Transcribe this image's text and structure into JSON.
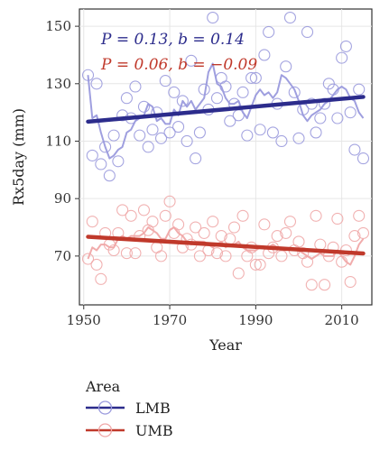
{
  "chart_data": {
    "type": "scatter",
    "xlabel": "Year",
    "ylabel": "Rx5day (mm)",
    "xlim": [
      1949,
      2017
    ],
    "ylim": [
      53,
      156
    ],
    "x_ticks": [
      "1950",
      "1970",
      "1990",
      "2010"
    ],
    "y_ticks": [
      "70",
      "90",
      "110",
      "130",
      "150"
    ],
    "grid": true,
    "legend": {
      "title": "Area",
      "placement": "bottom-left"
    },
    "annotations": [
      {
        "text": "P = 0.13, b = 0.14",
        "series": "LMB"
      },
      {
        "text": "P = 0.06, b = −0.09",
        "series": "UMB"
      }
    ],
    "series": [
      {
        "name": "LMB",
        "color": "#2c2c8c",
        "points_color": "#9a9add",
        "years": [
          1951,
          1952,
          1953,
          1954,
          1955,
          1956,
          1957,
          1958,
          1959,
          1960,
          1961,
          1962,
          1963,
          1964,
          1965,
          1966,
          1967,
          1968,
          1969,
          1970,
          1971,
          1972,
          1973,
          1974,
          1975,
          1976,
          1977,
          1978,
          1979,
          1980,
          1981,
          1982,
          1983,
          1984,
          1985,
          1986,
          1987,
          1988,
          1989,
          1990,
          1991,
          1992,
          1993,
          1994,
          1995,
          1996,
          1997,
          1998,
          1999,
          2000,
          2001,
          2002,
          2003,
          2004,
          2005,
          2006,
          2007,
          2008,
          2009,
          2010,
          2011,
          2012,
          2013,
          2014,
          2015
        ],
        "values": [
          133,
          105,
          130,
          102,
          108,
          98,
          112,
          103,
          119,
          125,
          118,
          129,
          112,
          122,
          108,
          114,
          120,
          111,
          131,
          113,
          127,
          115,
          124,
          110,
          138,
          104,
          113,
          128,
          121,
          153,
          125,
          132,
          129,
          117,
          123,
          119,
          127,
          112,
          132,
          132,
          114,
          140,
          148,
          113,
          123,
          110,
          136,
          153,
          127,
          111,
          121,
          148,
          123,
          113,
          118,
          123,
          130,
          128,
          118,
          139,
          143,
          120,
          107,
          128,
          104
        ],
        "running_mean": [
          133,
          118,
          119,
          113,
          108,
          104,
          105,
          107,
          108,
          113,
          114,
          117,
          118,
          119,
          123,
          122,
          117,
          118,
          116,
          116,
          121,
          119,
          124,
          122,
          124,
          121,
          123,
          125,
          134,
          137,
          130,
          129,
          125,
          123,
          123,
          124,
          120,
          118,
          122,
          126,
          128,
          126,
          127,
          125,
          127,
          133,
          132,
          130,
          128,
          124,
          119,
          117,
          119,
          120,
          121,
          123,
          124,
          126,
          128,
          129,
          128,
          125,
          124,
          120,
          118
        ],
        "trend": {
          "start": [
            1951,
            116.8
          ],
          "end": [
            2015,
            125.4
          ]
        }
      },
      {
        "name": "UMB",
        "color": "#c0392b",
        "points_color": "#f0a8a8",
        "years": [
          1951,
          1952,
          1953,
          1954,
          1955,
          1956,
          1957,
          1958,
          1959,
          1960,
          1961,
          1962,
          1963,
          1964,
          1965,
          1966,
          1967,
          1968,
          1969,
          1970,
          1971,
          1972,
          1973,
          1974,
          1975,
          1976,
          1977,
          1978,
          1979,
          1980,
          1981,
          1982,
          1983,
          1984,
          1985,
          1986,
          1987,
          1988,
          1989,
          1990,
          1991,
          1992,
          1993,
          1994,
          1995,
          1996,
          1997,
          1998,
          1999,
          2000,
          2001,
          2002,
          2003,
          2004,
          2005,
          2006,
          2007,
          2008,
          2009,
          2010,
          2011,
          2012,
          2013,
          2014,
          2015
        ],
        "values": [
          69,
          82,
          67,
          62,
          78,
          74,
          72,
          78,
          86,
          71,
          84,
          71,
          77,
          86,
          79,
          82,
          73,
          70,
          84,
          89,
          78,
          81,
          73,
          76,
          74,
          80,
          70,
          78,
          72,
          82,
          71,
          77,
          70,
          76,
          80,
          64,
          84,
          70,
          73,
          67,
          67,
          81,
          71,
          73,
          77,
          70,
          78,
          82,
          72,
          75,
          71,
          68,
          60,
          84,
          74,
          60,
          70,
          73,
          83,
          68,
          72,
          61,
          77,
          84,
          78
        ],
        "running_mean": [
          69,
          73,
          72,
          74,
          74,
          73,
          73,
          76,
          77,
          76,
          77,
          77,
          77,
          78,
          80,
          79,
          78,
          76,
          76,
          79,
          80,
          78,
          77,
          75,
          74,
          75,
          75,
          75,
          74,
          73,
          74,
          75,
          73,
          74,
          74,
          75,
          73,
          72,
          72,
          72,
          73,
          73,
          73,
          74,
          73,
          72,
          72,
          73,
          72,
          72,
          71,
          70,
          69,
          70,
          71,
          70,
          70,
          70,
          72,
          70,
          68,
          67,
          70,
          74,
          76
        ],
        "trend": {
          "start": [
            1951,
            76.7
          ],
          "end": [
            2015,
            70.9
          ]
        }
      }
    ]
  }
}
